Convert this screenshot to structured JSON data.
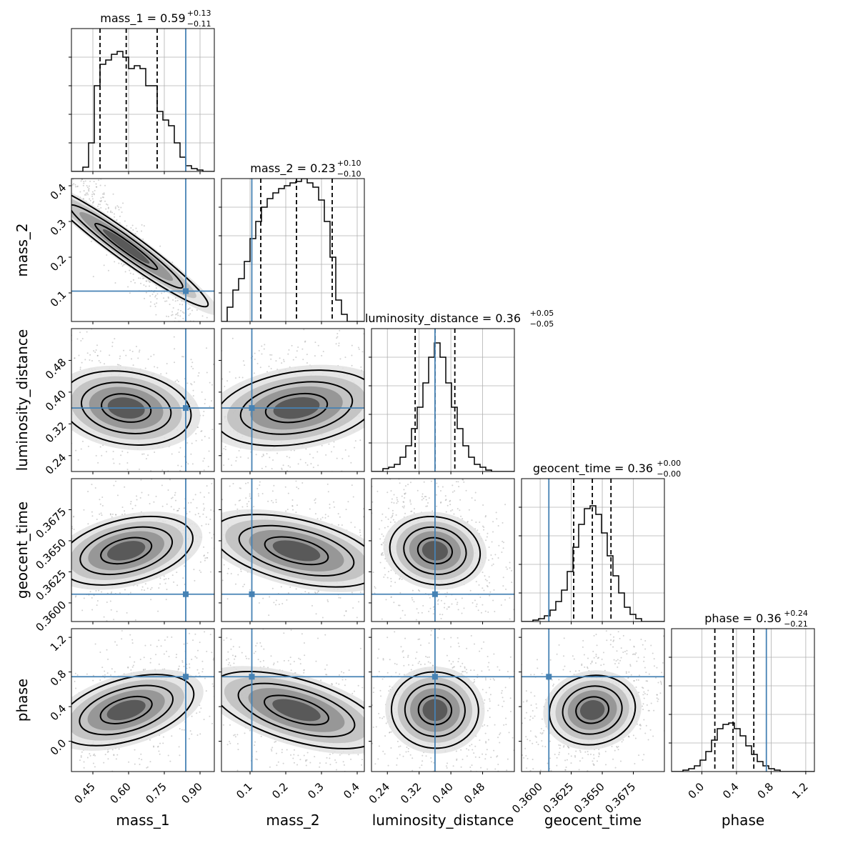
{
  "chart_data": {
    "type": "corner",
    "parameters": [
      "mass_1",
      "mass_2",
      "luminosity_distance",
      "geocent_time",
      "phase"
    ],
    "axis_labels": [
      "mass_1",
      "mass_2",
      "luminosity_distance",
      "geocent_time",
      "phase"
    ],
    "titles": [
      {
        "name": "mass_1",
        "median": "0.59",
        "plus": "+0.13",
        "minus": "−0.11"
      },
      {
        "name": "mass_2",
        "median": "0.23",
        "plus": "+0.10",
        "minus": "−0.10"
      },
      {
        "name": "luminosity_distance",
        "median": "0.36",
        "plus": "+0.05",
        "minus": "−0.05"
      },
      {
        "name": "geocent_time",
        "median": "0.36",
        "plus": "+0.00",
        "minus": "−0.00"
      },
      {
        "name": "phase",
        "median": "0.36",
        "plus": "+0.24",
        "minus": "−0.21"
      }
    ],
    "ranges": [
      [
        0.36,
        0.96
      ],
      [
        0.02,
        0.42
      ],
      [
        0.2,
        0.56
      ],
      [
        0.3585,
        0.37
      ],
      [
        -0.35,
        1.3
      ]
    ],
    "ticks": [
      {
        "values": [
          0.45,
          0.6,
          0.75,
          0.9
        ],
        "labels": [
          "0.45",
          "0.60",
          "0.75",
          "0.90"
        ]
      },
      {
        "values": [
          0.1,
          0.2,
          0.3,
          0.4
        ],
        "labels": [
          "0.1",
          "0.2",
          "0.3",
          "0.4"
        ]
      },
      {
        "values": [
          0.24,
          0.32,
          0.4,
          0.48
        ],
        "labels": [
          "0.24",
          "0.32",
          "0.40",
          "0.48"
        ]
      },
      {
        "values": [
          0.36,
          0.3625,
          0.365,
          0.3675
        ],
        "labels": [
          "0.3600",
          "0.3625",
          "0.3650",
          "0.3675"
        ]
      },
      {
        "values": [
          0.0,
          0.4,
          0.8,
          1.2
        ],
        "labels": [
          "0.0",
          "0.4",
          "0.8",
          "1.2"
        ]
      }
    ],
    "truths": [
      0.84,
      0.105,
      0.36,
      0.3607,
      0.745
    ],
    "quantiles": [
      [
        0.48,
        0.59,
        0.72
      ],
      [
        0.13,
        0.23,
        0.33
      ],
      [
        0.31,
        0.36,
        0.41
      ],
      [
        0.3627,
        0.3642,
        0.3657
      ],
      [
        0.15,
        0.36,
        0.6
      ]
    ],
    "histograms": [
      [
        0.0,
        0.0,
        0.03,
        0.2,
        0.6,
        0.75,
        0.78,
        0.82,
        0.84,
        0.8,
        0.72,
        0.74,
        0.72,
        0.6,
        0.6,
        0.42,
        0.36,
        0.32,
        0.2,
        0.1,
        0.04,
        0.02,
        0.01,
        0.0,
        0.0
      ],
      [
        0.0,
        0.1,
        0.22,
        0.3,
        0.42,
        0.58,
        0.7,
        0.8,
        0.86,
        0.9,
        0.93,
        0.95,
        0.97,
        0.98,
        1.0,
        0.97,
        0.94,
        0.85,
        0.7,
        0.45,
        0.15,
        0.05,
        0.0,
        0.0,
        0.0
      ],
      [
        0.0,
        0.0,
        0.02,
        0.03,
        0.05,
        0.1,
        0.18,
        0.3,
        0.45,
        0.62,
        0.8,
        0.9,
        0.8,
        0.62,
        0.45,
        0.3,
        0.18,
        0.1,
        0.05,
        0.03,
        0.01,
        0.0,
        0.0,
        0.0,
        0.0
      ],
      [
        0.0,
        0.0,
        0.01,
        0.02,
        0.04,
        0.08,
        0.14,
        0.22,
        0.35,
        0.52,
        0.68,
        0.79,
        0.81,
        0.75,
        0.62,
        0.46,
        0.32,
        0.2,
        0.1,
        0.05,
        0.02,
        0.0,
        0.0,
        0.0,
        0.0
      ],
      [
        0.0,
        0.0,
        0.01,
        0.02,
        0.04,
        0.08,
        0.14,
        0.22,
        0.3,
        0.33,
        0.34,
        0.3,
        0.25,
        0.18,
        0.12,
        0.07,
        0.04,
        0.02,
        0.01,
        0.0,
        0.0,
        0.0,
        0.0,
        0.0,
        0.0
      ]
    ],
    "correlations": [
      [
        1.0,
        -0.97,
        -0.3,
        0.45,
        0.55
      ],
      [
        -0.97,
        1.0,
        0.3,
        -0.45,
        -0.55
      ],
      [
        -0.3,
        0.3,
        1.0,
        -0.3,
        -0.15
      ],
      [
        0.45,
        -0.45,
        -0.3,
        1.0,
        0.35
      ],
      [
        0.55,
        -0.55,
        -0.15,
        0.35,
        1.0
      ]
    ],
    "colors": {
      "truth": "#4682b4",
      "contour": "#000000",
      "grid": "#b0b0b0"
    },
    "grid": true
  }
}
